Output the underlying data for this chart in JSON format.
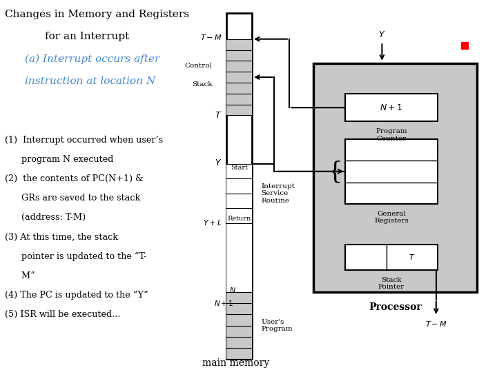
{
  "title_line1": "Changes in Memory and Registers",
  "title_line2": "for an Interrupt",
  "subtitle_line1": "(a) Interrupt occurs after",
  "subtitle_line2": "instruction at location N",
  "body_text": [
    "(1)  Interrupt occurred when user’s",
    "      program N executed",
    "(2)  the contents of PC(N+1) &",
    "      GRs are saved to the stack",
    "      (address: T-M)",
    "(3) At this time, the stack",
    "      pointer is updated to the “T-",
    "      M”",
    "(4) The PC is updated to the “Y”",
    "(5) ISR will be executed..."
  ],
  "footer_text": "main memory",
  "bg_color": "#ffffff",
  "title_color": "#000000",
  "subtitle_color": "#4488cc",
  "gray_color": "#c8c8c8"
}
